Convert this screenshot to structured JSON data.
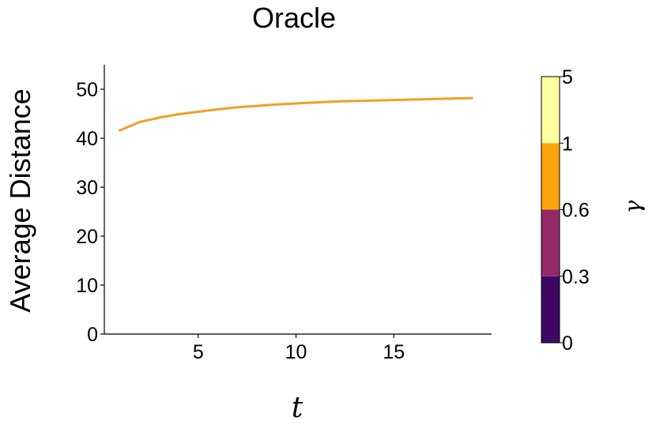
{
  "chart_data": {
    "type": "line",
    "title": "Oracle",
    "xlabel": "t",
    "ylabel": "Average Distance",
    "xlim": [
      0.2,
      20
    ],
    "ylim": [
      0,
      55
    ],
    "xticks": [
      5,
      10,
      15
    ],
    "yticks": [
      0,
      10,
      20,
      30,
      40,
      50
    ],
    "series": [
      {
        "color": "#f2a024",
        "x": [
          1,
          2,
          3,
          4,
          5,
          6,
          7,
          8,
          9,
          10,
          11,
          12,
          13,
          14,
          15,
          16,
          17,
          18,
          19
        ],
        "values": [
          41.6,
          43.3,
          44.2,
          44.9,
          45.4,
          45.9,
          46.3,
          46.6,
          46.9,
          47.1,
          47.3,
          47.5,
          47.6,
          47.7,
          47.8,
          47.9,
          48.0,
          48.1,
          48.2
        ]
      }
    ],
    "colorbar": {
      "label": "γ",
      "ticks": [
        "0",
        "0.3",
        "0.6",
        "1",
        "5"
      ],
      "bins": [
        {
          "color": "#3d0965"
        },
        {
          "color": "#962968"
        },
        {
          "color": "#fba20a"
        },
        {
          "color": "#fdfe9f"
        }
      ]
    },
    "grid": false,
    "legend": "none"
  }
}
